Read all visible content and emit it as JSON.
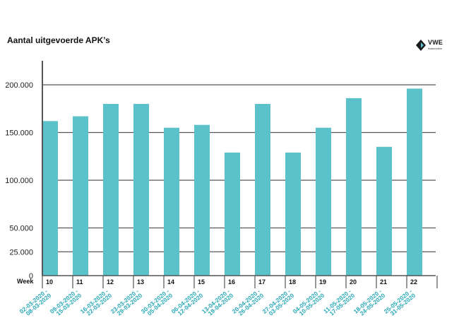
{
  "header": {
    "title": "Aantal uitgevoerde APK’s"
  },
  "logo": {
    "name": "VWE",
    "subtitle": "Automotive"
  },
  "colors": {
    "bar": "#5bc2ca",
    "date_label": "#2aa9b8",
    "grid": "#555555"
  },
  "chart_data": {
    "type": "bar",
    "title": "Aantal uitgevoerde APK’s",
    "xlabel": "Week",
    "ylabel": "",
    "ylim": [
      0,
      250000
    ],
    "yticks": [
      {
        "value": 0,
        "label": "0"
      },
      {
        "value": 25000,
        "label": "25.000"
      },
      {
        "value": 50000,
        "label": "50.000"
      },
      {
        "value": 100000,
        "label": "100.000"
      },
      {
        "value": 150000,
        "label": "150.000"
      },
      {
        "value": 200000,
        "label": "200.000"
      }
    ],
    "grid": true,
    "categories": [
      "10",
      "11",
      "12",
      "13",
      "14",
      "15",
      "16",
      "17",
      "18",
      "19",
      "20",
      "21",
      "22"
    ],
    "date_ranges": [
      [
        "02-03-2020",
        "08-03-2020"
      ],
      [
        "09-03-2020",
        "15-03-2020"
      ],
      [
        "16-03-2020",
        "22-03-2020"
      ],
      [
        "23-03-2020",
        "29-03-2020"
      ],
      [
        "30-03-2020",
        "05-04-2020"
      ],
      [
        "06-04-2020",
        "12-04-2020"
      ],
      [
        "13-04-2020",
        "19-04-2020"
      ],
      [
        "20-04-2020",
        "26-04-2020"
      ],
      [
        "27-04-2020",
        "03-05-2020"
      ],
      [
        "04-05-2020",
        "10-05-2020"
      ],
      [
        "11-05-2020",
        "17-05-2020"
      ],
      [
        "18-05-2020",
        "24-05-2020"
      ],
      [
        "25-05-2020",
        "31-05-2020"
      ]
    ],
    "values": [
      162000,
      167000,
      180000,
      180000,
      155000,
      158000,
      129000,
      180000,
      129000,
      155000,
      186000,
      135000,
      196000
    ]
  }
}
